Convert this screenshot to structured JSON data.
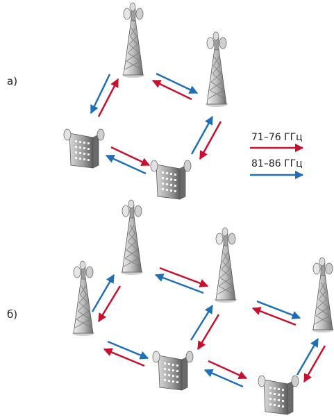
{
  "panels": [
    {
      "label": "а)"
    },
    {
      "label": "б)"
    }
  ],
  "legend": [
    {
      "label": "71–76 ГГц",
      "color": "#c8102e"
    },
    {
      "label": "81–86 ГГц",
      "color": "#1f6fb8"
    }
  ],
  "colors": {
    "band_a": "#c8102e",
    "band_b": "#1f6fb8",
    "metal_light": "#e8e8e8",
    "metal_dark": "#6b6b6b"
  },
  "icons": [
    "tower-icon",
    "building-icon"
  ]
}
